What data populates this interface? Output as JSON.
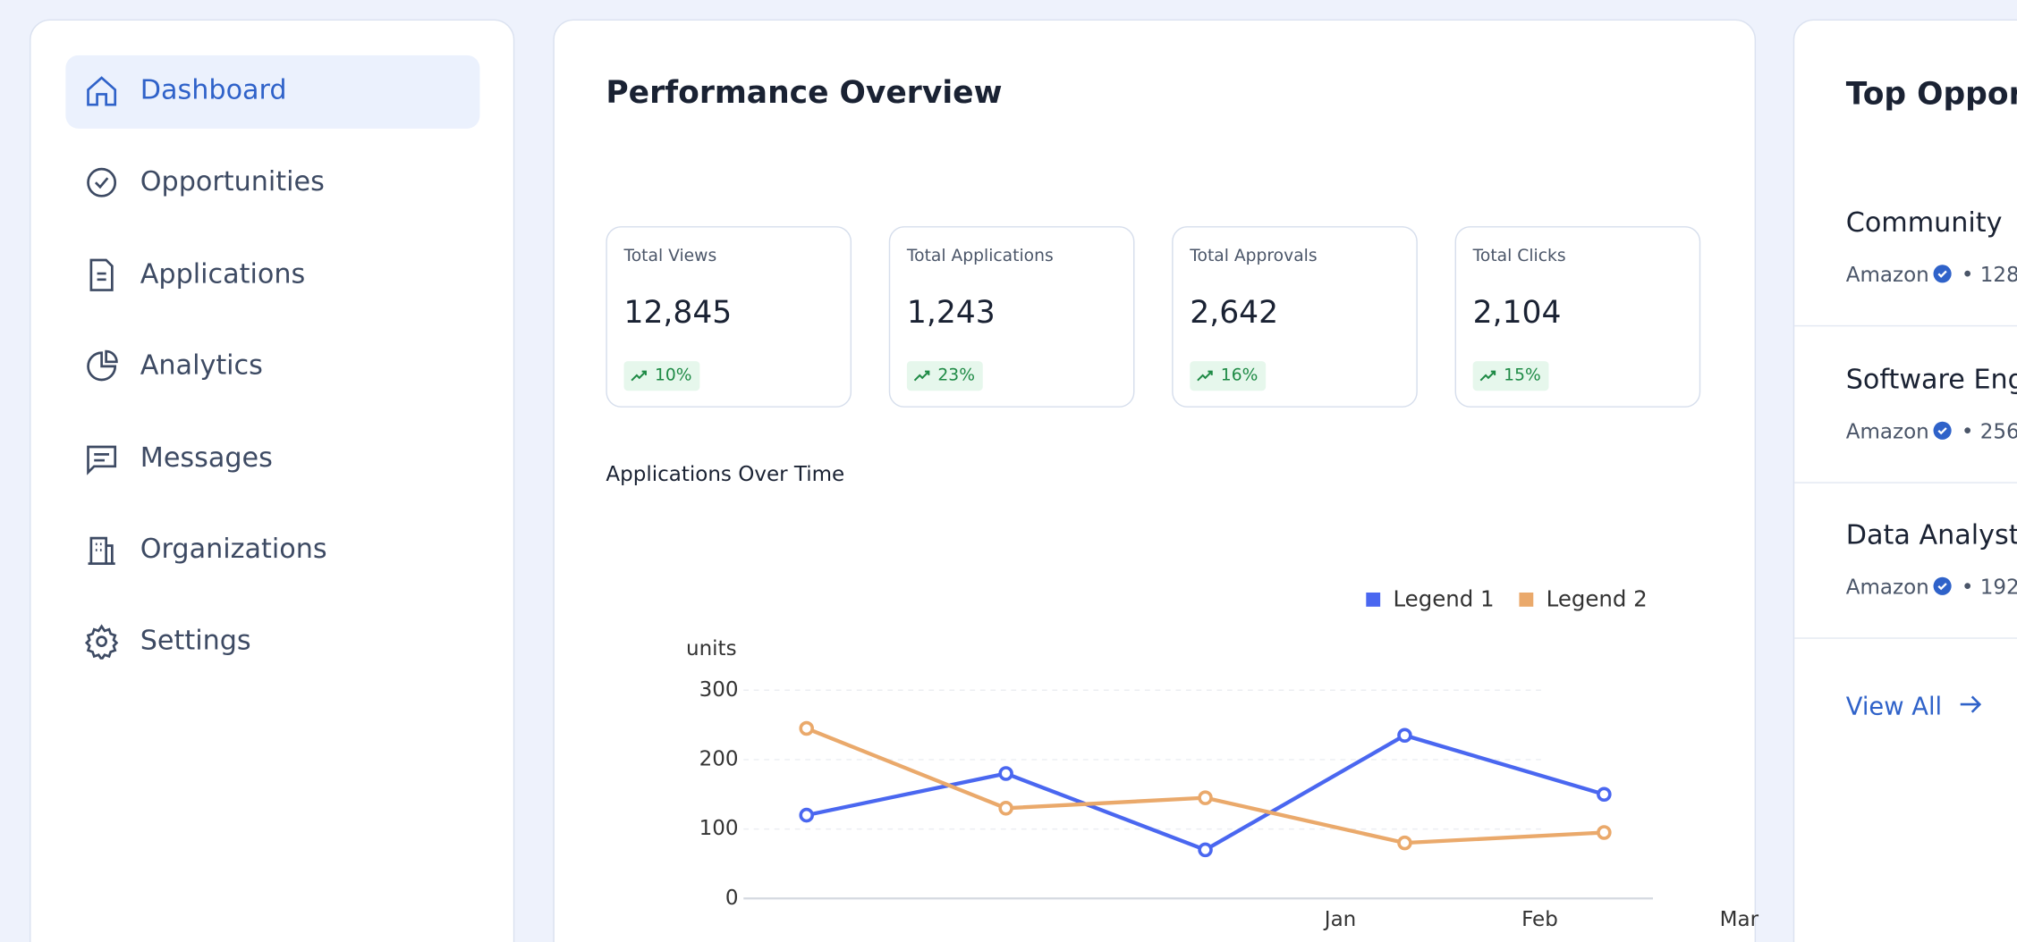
{
  "nav": {
    "items": [
      "Dashboard",
      "Opportunities",
      "Applications",
      "Analytics",
      "Messages",
      "Organizations",
      "Settings"
    ],
    "active": 0
  },
  "overview": {
    "title": "Performance Overview",
    "stats": [
      {
        "label": "Total Views",
        "value": "12,845",
        "change": "10%"
      },
      {
        "label": "Total Applications",
        "value": "1,243",
        "change": "23%"
      },
      {
        "label": "Total Approvals",
        "value": "2,642",
        "change": "16%"
      },
      {
        "label": "Total Clicks",
        "value": "2,104",
        "change": "15%"
      }
    ]
  },
  "chart_data": {
    "type": "line",
    "title": "Applications Over Time",
    "y_label": "units",
    "categories": [
      null,
      null,
      "Jan",
      "Feb",
      "Mar"
    ],
    "series": [
      {
        "name": "Legend 1",
        "color": "#4a67f0",
        "values": [
          120,
          180,
          70,
          235,
          150
        ]
      },
      {
        "name": "Legend 2",
        "color": "#eaa96b",
        "values": [
          245,
          130,
          145,
          80,
          95
        ]
      }
    ],
    "ylim": [
      0,
      300
    ],
    "yticks": [
      0,
      100,
      200,
      300
    ],
    "grid": true
  },
  "opportunities": {
    "title": "Top Opport",
    "items": [
      {
        "title": "Community",
        "org": "Amazon",
        "count": "128"
      },
      {
        "title": "Software Eng",
        "org": "Amazon",
        "count": "256"
      },
      {
        "title": "Data Analyst",
        "org": "Amazon",
        "count": "192"
      }
    ],
    "view_all": "View All"
  }
}
